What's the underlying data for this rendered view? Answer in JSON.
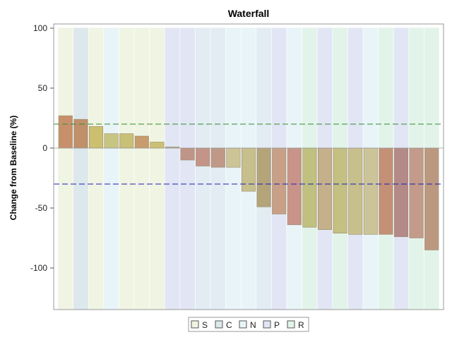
{
  "chart_data": {
    "type": "bar",
    "title": "Waterfall",
    "xlabel": "",
    "ylabel": "Change from Baseline (%)",
    "ylim": [
      -135,
      100
    ],
    "yticks": [
      100,
      50,
      0,
      -50,
      -100
    ],
    "grid": false,
    "reference_lines": [
      {
        "value": 20,
        "color": "#2e8b2e",
        "style": "dashed"
      },
      {
        "value": -30,
        "color": "#1c1cb4",
        "style": "dashed"
      }
    ],
    "values": [
      27,
      24,
      18,
      12,
      12,
      10,
      5,
      1,
      -10,
      -15,
      -16,
      -16,
      -36,
      -49,
      -55,
      -64,
      -66,
      -68,
      -71,
      -72,
      -72,
      -72,
      -74,
      -75,
      -85
    ],
    "bar_colors": [
      "#c8906a",
      "#c0906a",
      "#ccc070",
      "#c8c482",
      "#c8c076",
      "#c89c6c",
      "#ccc074",
      "#b4b496",
      "#c09488",
      "#c49488",
      "#c09888",
      "#ccc496",
      "#c8c08c",
      "#b4a47a",
      "#c8a088",
      "#c8948a",
      "#c0c080",
      "#c4b08a",
      "#c4c082",
      "#c8c08c",
      "#ccc498",
      "#c49076",
      "#b48a88",
      "#c49a8a",
      "#bc9880"
    ],
    "band_colors": [
      "#f0f4e2",
      "#dde8ec",
      "#f0f4e2",
      "#e8f4f8",
      "#f0f4e2",
      "#f0f4e2",
      "#f0f4e2",
      "#e2e6f4",
      "#e2e6f4",
      "#e2ecf2",
      "#e2ecf2",
      "#e8f4f8",
      "#e8f4f8",
      "#e2ecf2",
      "#e2e6f4",
      "#e8f4f8",
      "#e2f4ea",
      "#e2e6f4",
      "#e2f4ea",
      "#e2e6f4",
      "#e8f4f8",
      "#e2f4ea",
      "#e2e6f4",
      "#e2f4ea",
      "#e2f4ea"
    ],
    "legend": {
      "placement": "bottom-center",
      "items": [
        {
          "label": "S",
          "color": "#f0f4e2"
        },
        {
          "label": "C",
          "color": "#dde8ec"
        },
        {
          "label": "N",
          "color": "#e8f4f8"
        },
        {
          "label": "P",
          "color": "#e2e6f4"
        },
        {
          "label": "R",
          "color": "#e2f4ea"
        }
      ]
    }
  }
}
